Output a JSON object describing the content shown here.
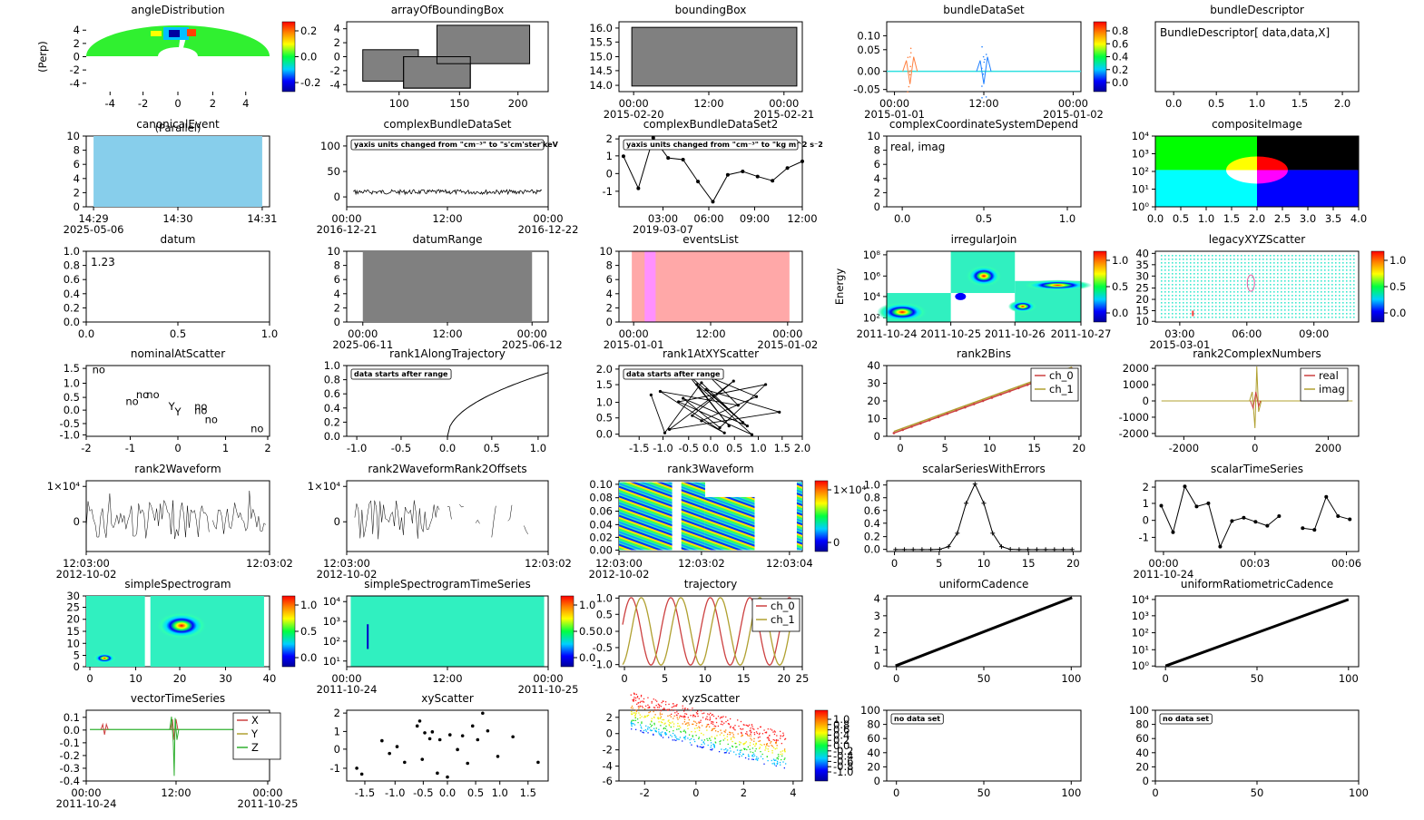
{
  "chart_data": [
    {
      "id": "angleDistribution",
      "type": "heatmap",
      "title": "angleDistribution",
      "ylabel": "(Perp)",
      "xlabel": "(Parallel)",
      "xticks": [
        "-4",
        "-2",
        "0",
        "2",
        "4"
      ],
      "yticks": [
        "4",
        "2",
        "0",
        "-2",
        "-4"
      ],
      "colorbar": {
        "ticks": [
          "0.2",
          "0.0",
          "-0.2"
        ]
      }
    },
    {
      "id": "arrayOfBoundingBox",
      "type": "other",
      "title": "arrayOfBoundingBox",
      "xticks": [
        "100",
        "150",
        "200"
      ],
      "yticks": [
        "4",
        "2",
        "0",
        "-2",
        "-4"
      ],
      "boxes": [
        {
          "x": [
            75,
            120
          ],
          "y": [
            -3.5,
            1
          ]
        },
        {
          "x": [
            108,
            162
          ],
          "y": [
            -4.5,
            0
          ]
        },
        {
          "x": [
            135,
            210
          ],
          "y": [
            -1,
            4.5
          ]
        }
      ]
    },
    {
      "id": "boundingBox",
      "type": "other",
      "title": "boundingBox",
      "xticks": [
        "00:00",
        "12:00",
        "00:00"
      ],
      "xsub": [
        "2015-02-20",
        "2015-02-21"
      ],
      "yticks": [
        "16.0",
        "15.5",
        "15.0",
        "14.5",
        "14.0"
      ],
      "box": {
        "y": [
          14,
          16
        ]
      }
    },
    {
      "id": "bundleDataSet",
      "type": "line",
      "title": "bundleDataSet",
      "xticks": [
        "00:00",
        "12:00",
        "00:00"
      ],
      "xsub": [
        "2015-01-01",
        "2015-01-02"
      ],
      "yticks": [
        "0.10",
        "0.05",
        "0.00",
        "-0.05"
      ],
      "colorbar": {
        "ticks": [
          "0.8",
          "0.6",
          "0.4",
          "0.2",
          "0.0"
        ]
      }
    },
    {
      "id": "bundleDescriptor",
      "type": "other",
      "title": "bundleDescriptor",
      "text": "BundleDescriptor[ data,data,X]",
      "xticks": [
        "0.0",
        "0.5",
        "1.0",
        "1.5",
        "2.0"
      ]
    },
    {
      "id": "canonicalEvent",
      "type": "bar",
      "title": "canonicalEvent",
      "xticks": [
        "14:29",
        "14:30",
        "14:31"
      ],
      "xsub": [
        "2025-05-06"
      ],
      "yticks": [
        "10",
        "8",
        "6",
        "4",
        "2",
        "0"
      ]
    },
    {
      "id": "complexBundleDataSet",
      "type": "line",
      "title": "complexBundleDataSet",
      "annotation": "yaxis units changed from \"cm⁻³\" to \"s'cm'ster'keV",
      "xticks": [
        "00:00",
        "12:00",
        "00:00"
      ],
      "xsub": [
        "2016-12-21",
        "2016-12-22"
      ],
      "yticks": [
        "100",
        "50",
        "0"
      ],
      "approx_level": 10
    },
    {
      "id": "complexBundleDataSet2",
      "type": "line",
      "title": "complexBundleDataSet2",
      "annotation": "yaxis units changed from \"cm⁻³\" to \"kg m^2 s⁻2",
      "xticks": [
        "03:00",
        "06:00",
        "09:00",
        "12:00"
      ],
      "xsub": [
        "2019-03-07"
      ],
      "yticks": [
        "2",
        "1",
        "0",
        "-1"
      ],
      "x_hours": [
        0,
        1,
        2,
        3,
        4,
        5,
        6,
        7,
        8,
        9,
        10,
        11,
        12
      ],
      "y": [
        1.0,
        -0.9,
        2.1,
        0.9,
        0.8,
        -0.5,
        -1.7,
        -0.1,
        0.1,
        -0.2,
        -0.45,
        0.3,
        0.7
      ]
    },
    {
      "id": "complexCoordinateSystemDepend",
      "type": "other",
      "title": "complexCoordinateSystemDepend",
      "text": "real, imag",
      "xticks": [
        "0.0",
        "0.5",
        "1.0"
      ],
      "yticks": [
        "10",
        "8",
        "6",
        "4",
        "2",
        "0"
      ]
    },
    {
      "id": "compositeImage",
      "type": "heatmap",
      "title": "compositeImage",
      "xticks": [
        "0.0",
        "0.5",
        "1.0",
        "1.5",
        "2.0",
        "2.5",
        "3.0",
        "3.5",
        "4.0"
      ],
      "yticks": [
        "10⁴",
        "10³",
        "10²",
        "10¹",
        "10⁰"
      ]
    },
    {
      "id": "datum",
      "type": "other",
      "title": "datum",
      "text": "1.23",
      "xticks": [
        "0.0",
        "0.5",
        "1.0"
      ],
      "yticks": [
        "1.0",
        "0.8",
        "0.6",
        "0.4",
        "0.2",
        "0.0"
      ]
    },
    {
      "id": "datumRange",
      "type": "other",
      "title": "datumRange",
      "xticks": [
        "00:00",
        "12:00",
        "00:00"
      ],
      "xsub": [
        "2025-06-11",
        "2025-06-12"
      ],
      "yticks": [
        "10",
        "8",
        "6",
        "4",
        "2",
        "0"
      ]
    },
    {
      "id": "eventsList",
      "type": "other",
      "title": "eventsList",
      "xticks": [
        "00:00",
        "12:00",
        "00:00"
      ],
      "xsub": [
        "2015-01-01",
        "2015-01-02"
      ],
      "yticks": [
        "10",
        "8",
        "6",
        "4",
        "2",
        "0"
      ]
    },
    {
      "id": "irregularJoin",
      "type": "heatmap",
      "title": "irregularJoin",
      "ylabel": "Energy",
      "xticks": [
        "2011-10-24",
        "2011-10-25",
        "2011-10-26",
        "2011-10-27"
      ],
      "yticks": [
        "10⁸",
        "10⁶",
        "10⁴",
        "10²"
      ],
      "colorbar": {
        "ticks": [
          "1.0",
          "0.5",
          "0.0"
        ]
      }
    },
    {
      "id": "legacyXYZScatter",
      "type": "scatter",
      "title": "legacyXYZScatter",
      "xticks": [
        "03:00",
        "06:00",
        "09:00"
      ],
      "xsub": [
        "2015-03-01"
      ],
      "yticks": [
        "40",
        "35",
        "30",
        "25",
        "20",
        "15",
        "10"
      ],
      "colorbar": {
        "ticks": [
          "1.0",
          "0.5",
          "0.0"
        ]
      }
    },
    {
      "id": "nominalAtScatter",
      "type": "scatter",
      "title": "nominalAtScatter",
      "xticks": [
        "-2",
        "-1",
        "0",
        "1",
        "2"
      ],
      "yticks": [
        "1.5",
        "1.0",
        "0.5",
        "0.0",
        "-0.5",
        "-1.0"
      ],
      "points": [
        {
          "x": -1.75,
          "y": 1.3,
          "t": "no"
        },
        {
          "x": -0.95,
          "y": 0.1,
          "t": "no"
        },
        {
          "x": -0.7,
          "y": 0.35,
          "t": "no"
        },
        {
          "x": -0.45,
          "y": 0.35,
          "t": "no"
        },
        {
          "x": 0,
          "y": -0.1,
          "t": "Y"
        },
        {
          "x": 0.15,
          "y": -0.3,
          "t": "Y"
        },
        {
          "x": 0.7,
          "y": -0.1,
          "t": "no"
        },
        {
          "x": 0.7,
          "y": -0.25,
          "t": "no"
        },
        {
          "x": 0.95,
          "y": -0.6,
          "t": "no"
        },
        {
          "x": 2.05,
          "y": -0.95,
          "t": "no"
        }
      ]
    },
    {
      "id": "rank1AlongTrajectory",
      "type": "line",
      "title": "rank1AlongTrajectory",
      "annotation": "data starts after range",
      "xticks": [
        "-1.0",
        "-0.5",
        "0.0",
        "0.5",
        "1.0"
      ],
      "yticks": [
        "1.0",
        "0.8",
        "0.6",
        "0.4",
        "0.2",
        "0.0"
      ]
    },
    {
      "id": "rank1AtXYScatter",
      "type": "line",
      "title": "rank1AtXYScatter",
      "annotation": "data starts after range",
      "xticks": [
        "-1.5",
        "-1.0",
        "-0.5",
        "0.0",
        "0.5",
        "1.0",
        "1.5",
        "2.0"
      ],
      "yticks": [
        "2.0",
        "1.5",
        "1.0",
        "0.5",
        "0.0"
      ],
      "x": [
        -1.3,
        -1.0,
        -0.2,
        0.7,
        -0.5,
        0.4,
        -0.3,
        0.9,
        -0.7,
        1.2,
        0.2,
        -0.6,
        0.8,
        -0.1,
        1.5,
        -0.9,
        0.5,
        -0.4,
        0.3,
        -1.1,
        0.6,
        0.0,
        1.0,
        -0.2
      ],
      "y": [
        1.2,
        0.1,
        1.55,
        0.4,
        1.8,
        0.3,
        1.5,
        0.05,
        1.0,
        1.5,
        0.25,
        1.1,
        0.3,
        1.35,
        0.7,
        0.2,
        1.6,
        0.6,
        0.1,
        1.3,
        0.9,
        1.7,
        1.15,
        0.45
      ]
    },
    {
      "id": "rank2Bins",
      "type": "line",
      "title": "rank2Bins",
      "xticks": [
        "0",
        "5",
        "10",
        "15",
        "20"
      ],
      "yticks": [
        "40",
        "30",
        "20",
        "10",
        "0"
      ],
      "series": [
        {
          "name": "ch_0"
        },
        {
          "name": "ch_1"
        }
      ]
    },
    {
      "id": "rank2ComplexNumbers",
      "type": "line",
      "title": "rank2ComplexNumbers",
      "xticks": [
        "-2000",
        "0",
        "2000"
      ],
      "yticks": [
        "2000",
        "1000",
        "0",
        "-1000",
        "-2000"
      ],
      "series": [
        {
          "name": "real"
        },
        {
          "name": "imag"
        }
      ]
    },
    {
      "id": "rank2Waveform",
      "type": "line",
      "title": "rank2Waveform",
      "xticks": [
        "12:03:00",
        "12:03:02"
      ],
      "xsub": [
        "2012-10-02"
      ],
      "yticks": [
        "1×10⁴",
        "0"
      ]
    },
    {
      "id": "rank2WaveformRank2Offsets",
      "type": "line",
      "title": "rank2WaveformRank2Offsets",
      "xticks": [
        "12:03:00",
        "12:03:02"
      ],
      "xsub": [
        "2012-10-02"
      ],
      "yticks": [
        "1×10⁴",
        "0"
      ]
    },
    {
      "id": "rank3Waveform",
      "type": "heatmap",
      "title": "rank3Waveform",
      "xticks": [
        "12:03:00",
        "12:03:02",
        "12:03:04"
      ],
      "xsub": [
        "2012-10-02"
      ],
      "yticks": [
        "0.10",
        "0.08",
        "0.06",
        "0.04",
        "0.02",
        "0.00"
      ],
      "colorbar": {
        "ticks": [
          "1×10⁴",
          "0"
        ]
      }
    },
    {
      "id": "scalarSeriesWithErrors",
      "type": "line",
      "title": "scalarSeriesWithErrors",
      "xticks": [
        "0",
        "5",
        "10",
        "15",
        "20"
      ],
      "yticks": [
        "1.0",
        "0.8",
        "0.6",
        "0.4",
        "0.2",
        "0.0"
      ]
    },
    {
      "id": "scalarTimeSeries",
      "type": "line",
      "title": "scalarTimeSeries",
      "xticks": [
        "00:00",
        "00:03",
        "00:06"
      ],
      "xsub": [
        "2011-10-24"
      ],
      "yticks": [
        "2",
        "1",
        "0",
        "-1"
      ],
      "x_min": [
        0,
        0.4,
        0.8,
        1.2,
        1.6,
        2.0,
        2.4,
        2.8,
        3.2,
        3.6,
        4.0,
        4.8,
        5.2,
        5.6,
        6.0,
        6.4
      ],
      "y": [
        0.85,
        -0.8,
        2.05,
        0.8,
        1.0,
        -1.7,
        -0.1,
        0.1,
        -0.15,
        -0.4,
        0.2,
        -0.55,
        -0.65,
        1.4,
        0.2,
        0.0
      ]
    },
    {
      "id": "simpleSpectrogram",
      "type": "heatmap",
      "title": "simpleSpectrogram",
      "xticks": [
        "0",
        "10",
        "20",
        "30",
        "40"
      ],
      "yticks": [
        "30",
        "25",
        "20",
        "15",
        "10",
        "5",
        "0"
      ],
      "colorbar": {
        "ticks": [
          "1.0",
          "0.5",
          "0.0"
        ]
      }
    },
    {
      "id": "simpleSpectrogramTimeSeries",
      "type": "heatmap",
      "title": "simpleSpectrogramTimeSeries",
      "xticks": [
        "00:00",
        "12:00",
        "00:00"
      ],
      "xsub": [
        "2011-10-24",
        "2011-10-25"
      ],
      "yticks": [
        "10⁴",
        "10³",
        "10²",
        "10¹"
      ],
      "colorbar": {
        "ticks": [
          "1.0",
          "0.5",
          "0.0"
        ]
      }
    },
    {
      "id": "trajectory",
      "type": "line",
      "title": "trajectory",
      "xticks": [
        "0",
        "5",
        "10",
        "15",
        "20",
        "25"
      ],
      "yticks": [
        "1.0",
        "0.5",
        "0.0",
        "-0.5",
        "-1.0"
      ],
      "series": [
        {
          "name": "ch_0"
        },
        {
          "name": "ch_1"
        }
      ]
    },
    {
      "id": "uniformCadence",
      "type": "line",
      "title": "uniformCadence",
      "xticks": [
        "0",
        "50",
        "100"
      ],
      "yticks": [
        "4",
        "3",
        "2",
        "1",
        "0"
      ],
      "x": [
        0,
        100
      ],
      "y": [
        0,
        4
      ]
    },
    {
      "id": "uniformRatiometricCadence",
      "type": "line",
      "title": "uniformRatiometricCadence",
      "xticks": [
        "0",
        "50",
        "100"
      ],
      "yticks": [
        "10⁴",
        "10³",
        "10²",
        "10¹",
        "10⁰"
      ],
      "x": [
        0,
        100
      ],
      "y_log": [
        0,
        4
      ]
    },
    {
      "id": "vectorTimeSeries",
      "type": "line",
      "title": "vectorTimeSeries",
      "xticks": [
        "00:00",
        "12:00",
        "00:00"
      ],
      "xsub": [
        "2011-10-24",
        "2011-10-25"
      ],
      "yticks": [
        "0.1",
        "0.0",
        "-0.1",
        "-0.2",
        "-0.3",
        "-0.4"
      ],
      "series": [
        {
          "name": "X"
        },
        {
          "name": "Y"
        },
        {
          "name": "Z"
        }
      ]
    },
    {
      "id": "xyScatter",
      "type": "scatter",
      "title": "xyScatter",
      "xticks": [
        "-1.5",
        "-1.0",
        "-0.5",
        "0.0",
        "0.5",
        "1.0",
        "1.5"
      ],
      "yticks": [
        "2",
        "1",
        "0",
        "-1"
      ],
      "x": [
        -1.8,
        -1.7,
        -1.3,
        -1.15,
        -1.0,
        -0.85,
        -0.6,
        -0.55,
        -0.5,
        -0.45,
        -0.35,
        -0.3,
        -0.2,
        -0.15,
        0.0,
        0.05,
        0.2,
        0.3,
        0.4,
        0.5,
        0.6,
        0.7,
        0.8,
        1.0,
        1.3,
        1.8
      ],
      "y": [
        -0.85,
        -1.15,
        0.55,
        -0.1,
        0.25,
        -0.55,
        1.3,
        1.55,
        -0.4,
        0.95,
        0.65,
        1.0,
        -1.1,
        0.6,
        -1.3,
        0.85,
        0.1,
        0.8,
        -0.6,
        1.3,
        0.6,
        1.95,
        1.05,
        -0.25,
        0.75,
        -0.55
      ]
    },
    {
      "id": "xyzScatter",
      "type": "scatter",
      "title": "xyzScatter",
      "xticks": [
        "-2",
        "0",
        "2",
        "4"
      ],
      "yticks": [
        "2",
        "0",
        "-2",
        "-4",
        "-6"
      ],
      "colorbar": {
        "ticks": [
          "1.0",
          "0.8",
          "0.6",
          "0.4",
          "0.2",
          "0.0",
          "-0.2",
          "-0.4",
          "-0.6",
          "-0.8",
          "-1.0"
        ]
      }
    },
    {
      "id": "empty1",
      "type": "other",
      "title": "",
      "annotation": "no data set",
      "xticks": [
        "0",
        "50",
        "100"
      ],
      "yticks": [
        "100",
        "80",
        "60",
        "40",
        "20",
        "0"
      ]
    },
    {
      "id": "empty2",
      "type": "other",
      "title": "",
      "annotation": "no data set",
      "xticks": [
        "0",
        "50",
        "100"
      ],
      "yticks": [
        "100",
        "80",
        "60",
        "40",
        "20",
        "0"
      ]
    }
  ]
}
